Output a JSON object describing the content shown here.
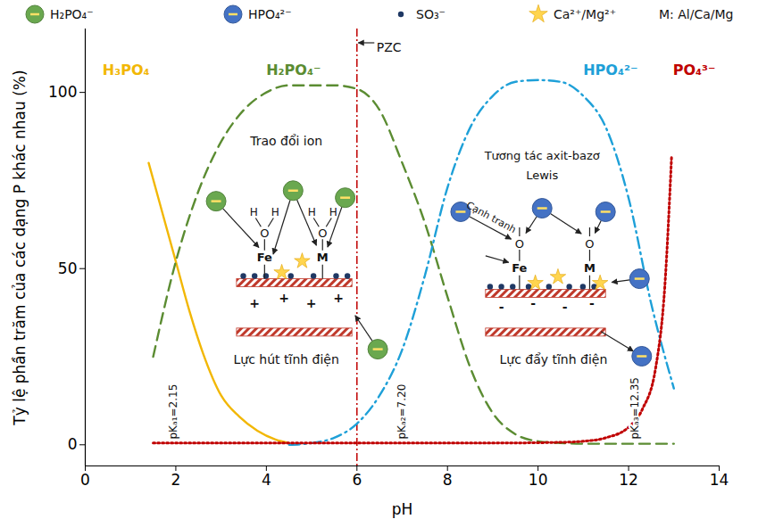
{
  "chart_data": {
    "type": "line",
    "xlabel": "pH",
    "ylabel": "Tỷ lệ phần trăm của các dạng P khác nhau (%)",
    "xlim": [
      0,
      14
    ],
    "xticks": [
      0,
      2,
      4,
      6,
      8,
      10,
      12,
      14
    ],
    "ylim": [
      -6,
      118
    ],
    "yticks": [
      0,
      50,
      100
    ],
    "legend": "top",
    "legend_items": [
      {
        "label": "H₂PO₄⁻",
        "marker": "circle",
        "color": "#6aa84f"
      },
      {
        "label": "HPO₄²⁻",
        "marker": "circle",
        "color": "#4472c4"
      },
      {
        "label": "SO₃⁻",
        "marker": "dot",
        "color": "#1f3864"
      },
      {
        "label": "Ca²⁺/Mg²⁺",
        "marker": "star",
        "color": "#ffd54f"
      },
      {
        "label": "M: Al/Ca/Mg"
      }
    ],
    "series": [
      {
        "name": "H₃PO₄",
        "color": "#f2b705",
        "line_style": "solid",
        "x": [
          1.4,
          1.7,
          2.0,
          2.3,
          2.6,
          3.0,
          3.4,
          3.8,
          4.2,
          4.5
        ],
        "values": [
          80,
          66,
          52,
          38,
          26,
          14,
          8,
          4,
          1.5,
          0.5
        ]
      },
      {
        "name": "H₂PO₄⁻",
        "color": "#5b8c32",
        "line_style": "dashed",
        "x": [
          1.5,
          2.0,
          2.5,
          3.0,
          3.5,
          4.0,
          4.5,
          5.0,
          5.5,
          6.0,
          6.5,
          7.0,
          7.5,
          8.0,
          8.5,
          9.0,
          9.5,
          10.0,
          10.5,
          11.0,
          12.0,
          13.0
        ],
        "values": [
          25,
          52,
          72,
          86,
          95,
          100,
          102,
          102,
          102,
          101,
          95,
          80,
          63,
          42,
          22,
          9,
          3,
          1,
          0.5,
          0.3,
          0.3,
          0.3
        ]
      },
      {
        "name": "HPO₄²⁻",
        "color": "#1ea0d8",
        "line_style": "dashdot",
        "x": [
          4.5,
          5.0,
          5.5,
          6.0,
          6.5,
          7.0,
          7.5,
          8.0,
          8.5,
          9.0,
          9.5,
          10.0,
          10.5,
          11.0,
          11.5,
          12.0,
          12.5,
          13.0
        ],
        "values": [
          0,
          0.5,
          2,
          6,
          14,
          27,
          48,
          73,
          90,
          99,
          103,
          103.5,
          103,
          99,
          90,
          70,
          40,
          16
        ]
      },
      {
        "name": "PO₄³⁻",
        "color": "#c00000",
        "line_style": "dotted",
        "x": [
          1.5,
          3,
          5,
          7,
          9,
          10.5,
          11,
          11.5,
          12,
          12.3,
          12.6,
          12.8,
          12.95
        ],
        "values": [
          0.5,
          0.5,
          0.5,
          0.5,
          0.5,
          0.7,
          1,
          2,
          5,
          10,
          22,
          45,
          82
        ]
      }
    ],
    "vlines": [
      {
        "x": 6,
        "label": "PZC",
        "color": "#c00000"
      }
    ],
    "pka": [
      {
        "value": 2.15,
        "label": "pKₐ₁=2.15"
      },
      {
        "value": 7.2,
        "label": "pKₐ₂=7.20"
      },
      {
        "value": 12.35,
        "label": "pKₐ₃=12.35"
      }
    ],
    "insets": [
      {
        "title": "Trao đổi ion",
        "force": "Lực hút tĩnh điện",
        "charge": "+",
        "atoms": [
          "Fe",
          "M"
        ],
        "ligand": "O",
        "proton": "H",
        "ion": "H₂PO₄⁻"
      },
      {
        "title": "Tương tác axit-bazơ Lewis",
        "force": "Lực đẩy tĩnh điện",
        "charge": "-",
        "atoms": [
          "Fe",
          "M"
        ],
        "ligand": "O",
        "arrow_label": "Cạnh tranh",
        "ion": "HPO₄²⁻"
      }
    ]
  }
}
